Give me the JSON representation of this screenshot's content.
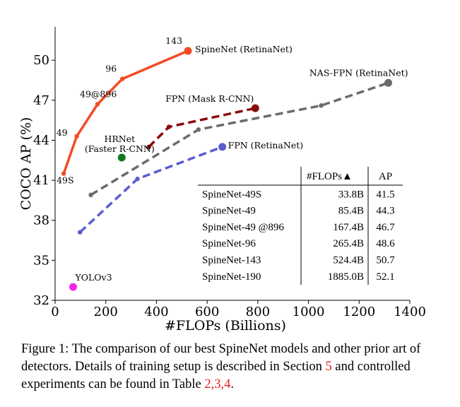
{
  "chart_data": {
    "type": "line",
    "xlabel": "#FLOPs (Billions)",
    "ylabel": "COCO AP (%)",
    "xlim": [
      0,
      1400
    ],
    "ylim": [
      32,
      52.5
    ],
    "xticks": [
      0,
      200,
      400,
      600,
      800,
      1000,
      1200,
      1400
    ],
    "yticks": [
      32,
      35,
      38,
      41,
      44,
      47,
      50
    ],
    "grid": false,
    "series": [
      {
        "name": "SpineNet (RetinaNet)",
        "color": "#f44b24",
        "style": "solid",
        "marker": true,
        "x": [
          33.8,
          85.4,
          167.4,
          265.4,
          524.4
        ],
        "y": [
          41.5,
          44.3,
          46.7,
          48.6,
          50.7
        ],
        "point_labels": [
          "49S",
          "49",
          "49@896",
          "96",
          "143"
        ]
      },
      {
        "name": "NAS-FPN (RetinaNet)",
        "color": "#6b6b6b",
        "style": "dashed",
        "marker": true,
        "x": [
          141,
          566,
          1050,
          1315
        ],
        "y": [
          39.9,
          44.8,
          46.6,
          48.3
        ]
      },
      {
        "name": "FPN (Mask R-CNN)",
        "color": "#8b0a0a",
        "style": "dashed",
        "marker": true,
        "x": [
          370,
          449,
          790
        ],
        "y": [
          43.5,
          45.0,
          46.4
        ]
      },
      {
        "name": "FPN (RetinaNet)",
        "color": "#5b5bd0",
        "style": "dashed",
        "marker": true,
        "x": [
          98,
          325,
          660
        ],
        "y": [
          37.1,
          41.1,
          43.5
        ]
      },
      {
        "name": "HRNet\n(Faster R-CNN)",
        "color": "#0f7a1e",
        "style": "none",
        "marker": true,
        "x": [
          263
        ],
        "y": [
          42.7
        ]
      },
      {
        "name": "YOLOv3",
        "color": "#f028e6",
        "style": "none",
        "marker": true,
        "x": [
          71
        ],
        "y": [
          33.0
        ]
      }
    ],
    "table": {
      "columns": [
        "",
        "#FLOPs▲",
        "AP"
      ],
      "rows": [
        [
          "SpineNet-49S",
          "33.8B",
          "41.5"
        ],
        [
          "SpineNet-49",
          "85.4B",
          "44.3"
        ],
        [
          "SpineNet-49 @896",
          "167.4B",
          "46.7"
        ],
        [
          "SpineNet-96",
          "265.4B",
          "48.6"
        ],
        [
          "SpineNet-143",
          "524.4B",
          "50.7"
        ],
        [
          "SpineNet-190",
          "1885.0B",
          "52.1"
        ]
      ]
    }
  },
  "caption": {
    "part1": "Figure 1: The comparison of our best SpineNet models and other prior art of detectors. Details of training setup is described in Section ",
    "ref_section": "5",
    "part2": " and controlled experiments can be found in Table ",
    "ref_tables": "2,3,4",
    "part3": "."
  }
}
